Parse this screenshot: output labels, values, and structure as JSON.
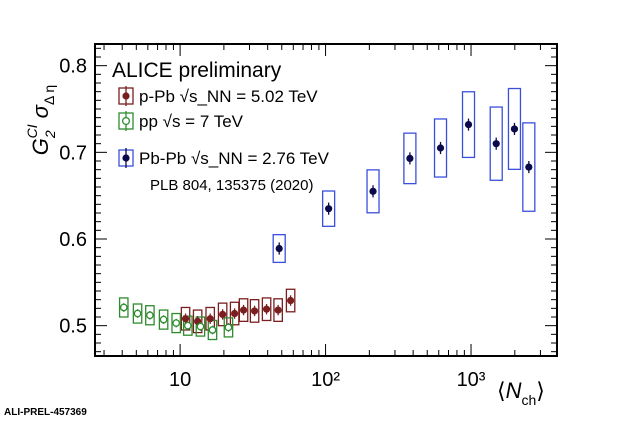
{
  "chart_data": {
    "type": "scatter",
    "title": "ALICE preliminary",
    "xlabel": "⟨N_ch⟩",
    "ylabel": "G_2^CI σ_Δη",
    "xscale": "log",
    "xlim": [
      2.6,
      3900
    ],
    "ylim": [
      0.465,
      0.825
    ],
    "yticks": [
      0.5,
      0.6,
      0.7,
      0.8
    ],
    "xtick_labels": [
      "10",
      "10²",
      "10³"
    ],
    "grid": false,
    "legend_position": "top-left",
    "reference": "PLB 804, 135375 (2020)",
    "corner_label": "ALI-PREL-457369",
    "series": [
      {
        "name": "p-Pb √s_NN = 5.02 TeV",
        "color": "#7a1f1f",
        "marker": "filled-circle",
        "points": [
          {
            "x": 10.9,
            "y": 0.508
          },
          {
            "x": 13.2,
            "y": 0.505
          },
          {
            "x": 16.1,
            "y": 0.508
          },
          {
            "x": 19.6,
            "y": 0.513
          },
          {
            "x": 23.7,
            "y": 0.514
          },
          {
            "x": 27.3,
            "y": 0.518
          },
          {
            "x": 32.5,
            "y": 0.517
          },
          {
            "x": 39.3,
            "y": 0.519
          },
          {
            "x": 47.2,
            "y": 0.518
          },
          {
            "x": 57.5,
            "y": 0.529
          }
        ]
      },
      {
        "name": "pp √s = 7 TeV",
        "color": "#2e8b2e",
        "marker": "open-circle",
        "points": [
          {
            "x": 4.1,
            "y": 0.521
          },
          {
            "x": 5.1,
            "y": 0.514
          },
          {
            "x": 6.2,
            "y": 0.512
          },
          {
            "x": 7.7,
            "y": 0.507
          },
          {
            "x": 9.4,
            "y": 0.503
          },
          {
            "x": 11.3,
            "y": 0.5
          },
          {
            "x": 13.8,
            "y": 0.499
          },
          {
            "x": 16.7,
            "y": 0.495
          },
          {
            "x": 21.5,
            "y": 0.498
          }
        ]
      },
      {
        "name": "Pb-Pb √s_NN = 2.76 TeV",
        "color": "#0a0a4a",
        "box_color": "#3a50dc",
        "marker": "filled-circle",
        "points": [
          {
            "x": 48,
            "y": 0.589
          },
          {
            "x": 105,
            "y": 0.635
          },
          {
            "x": 212,
            "y": 0.655
          },
          {
            "x": 380,
            "y": 0.693
          },
          {
            "x": 617,
            "y": 0.705
          },
          {
            "x": 961,
            "y": 0.732
          },
          {
            "x": 1490,
            "y": 0.71
          },
          {
            "x": 1989,
            "y": 0.727
          },
          {
            "x": 2497,
            "y": 0.683
          }
        ]
      }
    ]
  }
}
